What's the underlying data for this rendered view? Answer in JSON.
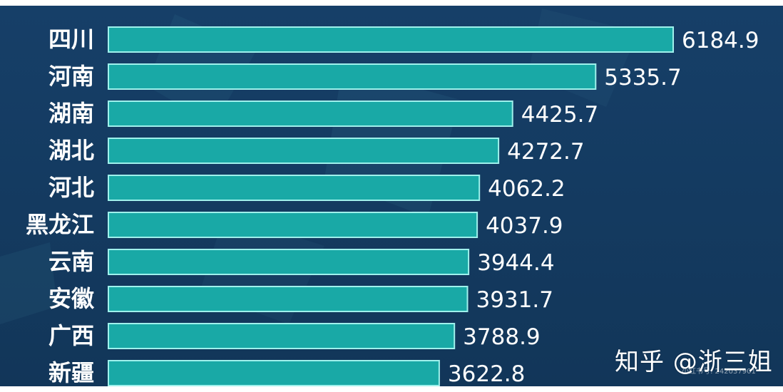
{
  "chart_data": {
    "type": "bar",
    "orientation": "horizontal",
    "categories": [
      "四川",
      "河南",
      "湖南",
      "湖北",
      "河北",
      "黑龙江",
      "云南",
      "安徽",
      "广西",
      "新疆"
    ],
    "values": [
      6184.9,
      5335.7,
      4425.7,
      4272.7,
      4062.2,
      4037.9,
      3944.4,
      3931.7,
      3788.9,
      3622.8
    ],
    "value_labels": [
      "6184.9",
      "5335.7",
      "4425.7",
      "4272.7",
      "4062.2",
      "4037.9",
      "3944.4",
      "3931.7",
      "3788.9",
      "3622.8"
    ],
    "title": "",
    "xlabel": "",
    "ylabel": "",
    "grid": false,
    "legend": "none",
    "colors": {
      "background": "#143e67",
      "background_dark": "#0e2f52",
      "bar": "#19a9a6",
      "bar_border": "#9ff1ec",
      "label": "#ffffff",
      "value": "#ffffff"
    }
  },
  "watermark": {
    "text": "知乎 @浙三姐",
    "small_text": "小红书号: 242037901"
  }
}
